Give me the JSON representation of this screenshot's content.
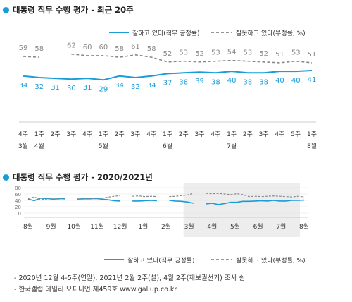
{
  "colors": {
    "approve": "#1a9cd8",
    "disapprove": "#888888",
    "shade": "#ededed"
  },
  "top": {
    "title": "대통령 직무 수행 평가 - 최근 20주"
  },
  "bottom": {
    "title": "대통령 직무 수행 평가 - 2020/2021년"
  },
  "footnotes": [
    "- 2020년 12월 4-5주(연말), 2021년 2월 2주(설), 4월 2주(재보궐선거) 조사 쉼",
    "- 한국갤럽 데일리 오피니언 제459호 www.gallup.co.kr"
  ],
  "chart_data": [
    {
      "type": "line",
      "title": "대통령 직무 수행 평가 - 최근 20주",
      "categories": [
        "4주",
        "1주",
        "2주",
        "3주",
        "4주",
        "1주",
        "2주",
        "3주",
        "4주",
        "1주",
        "2주",
        "3주",
        "4주",
        "1주",
        "2주",
        "3주",
        "4주",
        "5주",
        "1주"
      ],
      "month_labels": [
        {
          "at": 0,
          "label": "3월"
        },
        {
          "at": 1,
          "label": "4월"
        },
        {
          "at": 5,
          "label": "5월"
        },
        {
          "at": 9,
          "label": "6월"
        },
        {
          "at": 13,
          "label": "7월"
        },
        {
          "at": 18,
          "label": "8월"
        }
      ],
      "series": [
        {
          "name": "잘하고 있다(직무 긍정률)",
          "values": [
            34,
            32,
            31,
            30,
            31,
            29,
            34,
            32,
            34,
            37,
            38,
            39,
            38,
            40,
            38,
            38,
            40,
            40,
            41
          ]
        },
        {
          "name": "잘못하고 있다(부정률, %)",
          "values": [
            59,
            58,
            null,
            62,
            60,
            60,
            58,
            61,
            58,
            52,
            53,
            52,
            53,
            54,
            53,
            52,
            51,
            53,
            51
          ]
        }
      ],
      "legend": "top-right"
    },
    {
      "type": "line",
      "title": "대통령 직무 수행 평가 - 2020/2021년",
      "x_labels": [
        "8월",
        "9월",
        "10월",
        "11월",
        "12월",
        "1월",
        "2월",
        "3월",
        "4월",
        "5월",
        "6월",
        "7월",
        "8월"
      ],
      "ylim": [
        0,
        80
      ],
      "y_ticks": [
        0,
        20,
        40,
        60,
        80
      ],
      "series": [
        {
          "name": "잘하고 있다(직무 긍정률)",
          "values": [
            44,
            39,
            47,
            46,
            44,
            45,
            46,
            null,
            44,
            45,
            45,
            46,
            44,
            42,
            39,
            38,
            null,
            38,
            38,
            39,
            40,
            39,
            null,
            40,
            38,
            37,
            35,
            31,
            null,
            29,
            31,
            27,
            30,
            34,
            34,
            37,
            37,
            38,
            39,
            38,
            40,
            38,
            38,
            40,
            40,
            41
          ]
        },
        {
          "name": "잘못하고 있다(부정률, %)",
          "values": [
            46,
            51,
            43,
            44,
            45,
            45,
            44,
            null,
            45,
            44,
            46,
            45,
            47,
            50,
            53,
            55,
            null,
            53,
            54,
            52,
            53,
            52,
            null,
            52,
            53,
            55,
            57,
            62,
            null,
            62,
            61,
            62,
            60,
            58,
            61,
            58,
            52,
            53,
            52,
            53,
            54,
            53,
            52,
            51,
            53,
            51
          ]
        }
      ],
      "shaded_range": [
        "3월",
        "8월"
      ],
      "legend": "bottom-right"
    }
  ]
}
